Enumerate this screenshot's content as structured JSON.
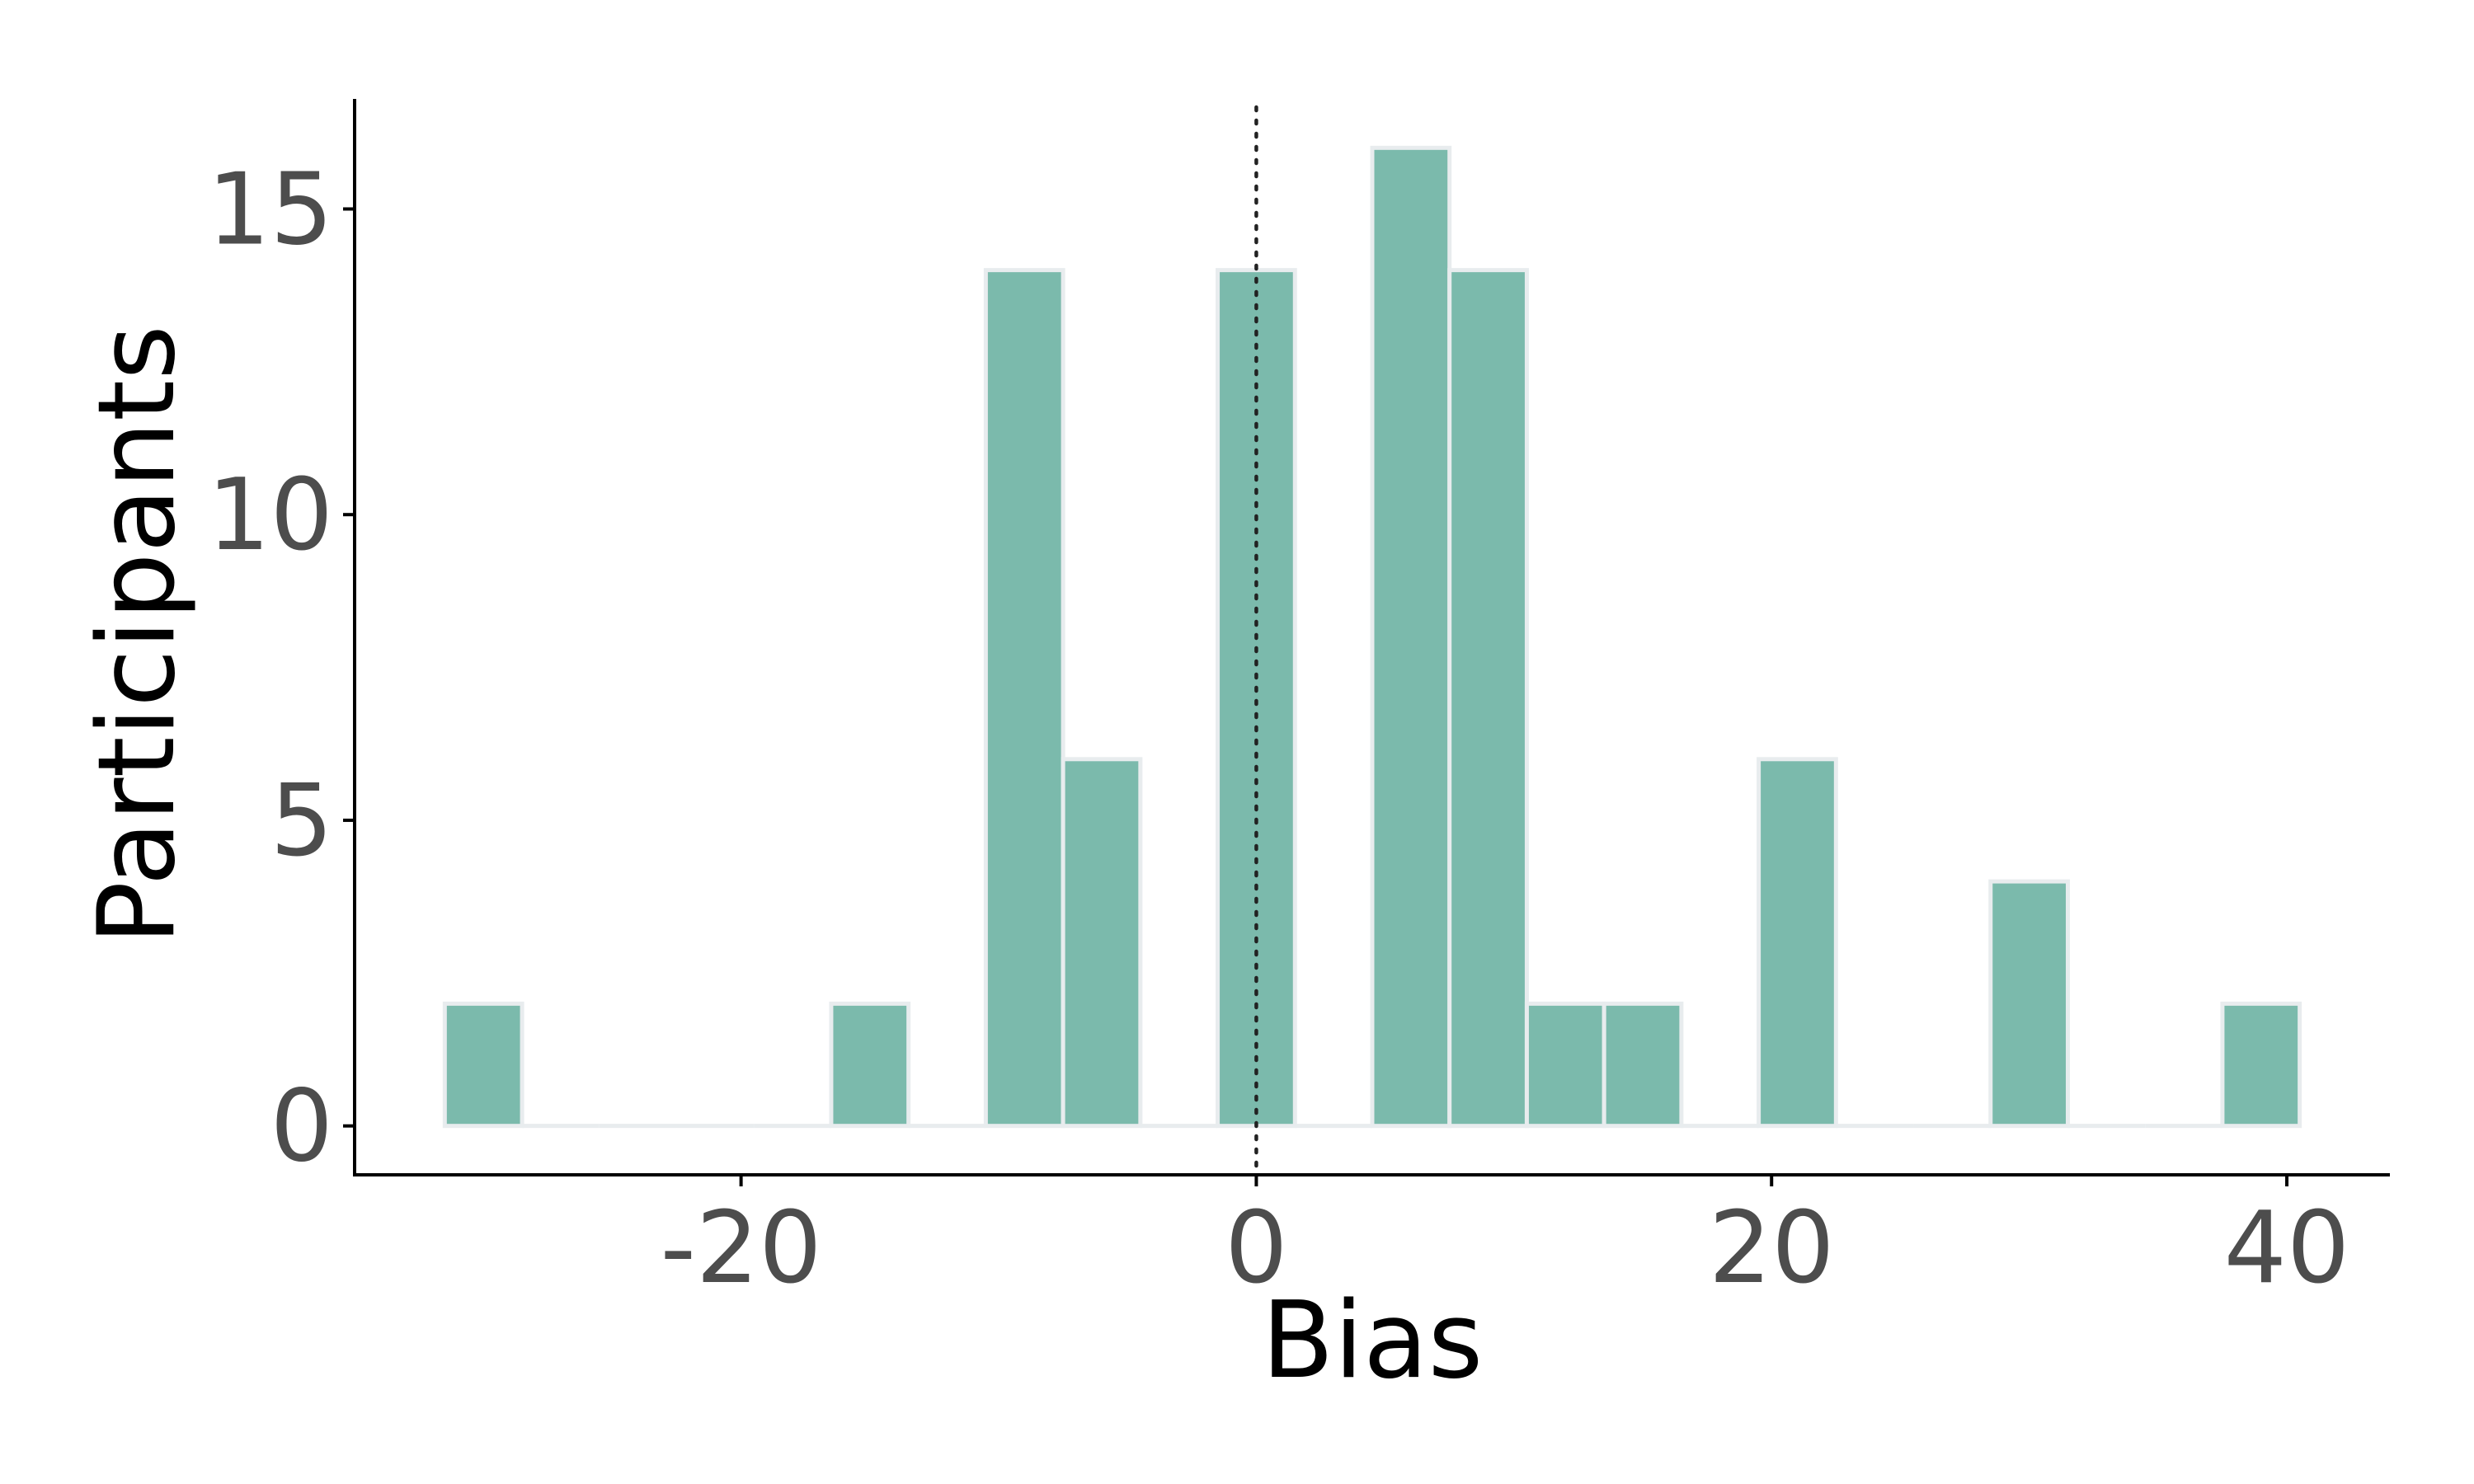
{
  "chart_data": {
    "type": "bar",
    "subtype": "histogram",
    "title": "",
    "xlabel": "Bias",
    "ylabel": "Participants",
    "x_ticks": [
      "-20",
      "0",
      "20",
      "40"
    ],
    "y_ticks": [
      "0",
      "5",
      "10",
      "15"
    ],
    "xlim": [
      -35,
      44
    ],
    "ylim": [
      -0.8,
      16.8
    ],
    "bin_width": 3,
    "bins": [
      {
        "start": -31.5,
        "end": -28.5,
        "count": 2
      },
      {
        "start": -28.5,
        "end": -25.5,
        "count": 0
      },
      {
        "start": -25.5,
        "end": -22.5,
        "count": 0
      },
      {
        "start": -22.5,
        "end": -19.5,
        "count": 0
      },
      {
        "start": -19.5,
        "end": -16.5,
        "count": 0
      },
      {
        "start": -16.5,
        "end": -13.5,
        "count": 2
      },
      {
        "start": -13.5,
        "end": -10.5,
        "count": 0
      },
      {
        "start": -10.5,
        "end": -7.5,
        "count": 14
      },
      {
        "start": -7.5,
        "end": -4.5,
        "count": 6
      },
      {
        "start": -4.5,
        "end": -1.5,
        "count": 0
      },
      {
        "start": -1.5,
        "end": 1.5,
        "count": 14
      },
      {
        "start": 1.5,
        "end": 4.5,
        "count": 0
      },
      {
        "start": 4.5,
        "end": 7.5,
        "count": 16
      },
      {
        "start": 7.5,
        "end": 10.5,
        "count": 14
      },
      {
        "start": 10.5,
        "end": 13.5,
        "count": 2
      },
      {
        "start": 13.5,
        "end": 16.5,
        "count": 2
      },
      {
        "start": 16.5,
        "end": 19.5,
        "count": 0
      },
      {
        "start": 19.5,
        "end": 22.5,
        "count": 6
      },
      {
        "start": 22.5,
        "end": 25.5,
        "count": 0
      },
      {
        "start": 25.5,
        "end": 28.5,
        "count": 0
      },
      {
        "start": 28.5,
        "end": 31.5,
        "count": 4
      },
      {
        "start": 31.5,
        "end": 34.5,
        "count": 0
      },
      {
        "start": 34.5,
        "end": 37.5,
        "count": 0
      },
      {
        "start": 37.5,
        "end": 40.5,
        "count": 2
      }
    ],
    "reference_line": {
      "x": 0,
      "style": "dotted"
    },
    "colors": {
      "bar_fill": "#7bbaac",
      "bar_edge": "#e8ecee",
      "reference_line": "#222222"
    },
    "grid": false,
    "legend": "none"
  }
}
